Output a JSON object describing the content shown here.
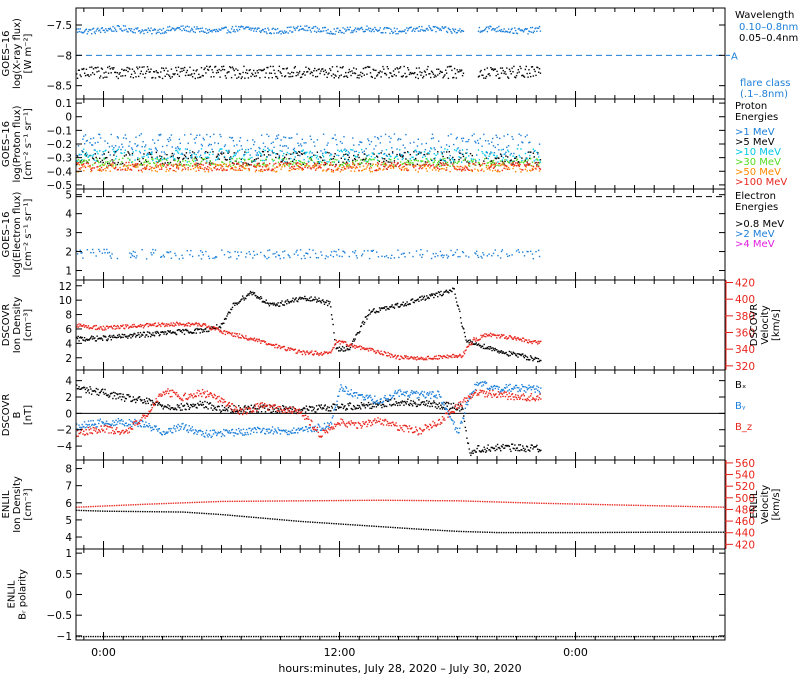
{
  "x_axis_label": "hours:minutes, July 28, 2020 – July 30, 2020",
  "x_ticks": [
    {
      "label": "0:00",
      "hour": 0
    },
    {
      "label": "12:00",
      "hour": 12
    },
    {
      "label": "0:00",
      "hour": 24
    }
  ],
  "colors": {
    "black": "#000000",
    "blue": "#1c7fd8",
    "cyan": "#00c8e6",
    "green": "#55dd22",
    "orange": "#ff8800",
    "red": "#e8261e",
    "magenta": "#e020e0"
  },
  "chart_data": [
    {
      "type": "scatter",
      "ylabel": [
        "GOES–16",
        "log(X-ray flux)",
        "[W m⁻²]"
      ],
      "yticks": [
        -8.5,
        -8.0,
        -7.5
      ],
      "ylim": [
        -8.72,
        -7.22
      ],
      "xlim": [
        -1.4,
        31.6
      ],
      "threshold": {
        "value": -8.0,
        "label": "A"
      },
      "legend_title": "Wavelength",
      "series": [
        {
          "name": "0.10–0.8nm",
          "color": "#1c7fd8",
          "level": -7.57,
          "noise": 0.05
        },
        {
          "name": "0.05–0.4nm",
          "color": "#000000",
          "level": -8.27,
          "noise": 0.1
        }
      ],
      "gap": [
        18.3,
        19.0
      ],
      "data_end": 22.2,
      "extra_text": [
        "flare class",
        "(.1–.8nm)"
      ]
    },
    {
      "type": "scatter",
      "ylabel": [
        "GOES–16",
        "log(Proton flux)",
        "[cm⁻² s⁻¹ sr⁻¹]"
      ],
      "yticks": [
        -0.5,
        -0.4,
        -0.3,
        -0.2,
        -0.1,
        0.0,
        0.1
      ],
      "ylim": [
        -0.53,
        0.13
      ],
      "xlim": [
        -1.4,
        31.6
      ],
      "legend_title": [
        "Proton",
        "Energies"
      ],
      "series": [
        {
          "name": ">1 MeV",
          "color": "#1c7fd8",
          "level": -0.2,
          "noise": 0.08
        },
        {
          "name": ">5 MeV",
          "color": "#000000",
          "level": -0.3,
          "noise": 0.05
        },
        {
          "name": ">10 MeV",
          "color": "#00c8e6",
          "level": -0.28,
          "noise": 0.05
        },
        {
          "name": ">30 MeV",
          "color": "#55dd22",
          "level": -0.33,
          "noise": 0.03
        },
        {
          "name": ">50 MeV",
          "color": "#ff8800",
          "level": -0.37,
          "noise": 0.03
        },
        {
          "name": ">100 MeV",
          "color": "#e8261e",
          "level": -0.36,
          "noise": 0.03
        }
      ],
      "data_end": 22.2
    },
    {
      "type": "scatter",
      "ylabel": [
        "GOES–16",
        "log(Electron flux)",
        "[cm⁻² s⁻¹ sr⁻¹]"
      ],
      "yticks": [
        1,
        2,
        3,
        4,
        5
      ],
      "ylim": [
        0.5,
        5.3
      ],
      "xlim": [
        -1.4,
        31.6
      ],
      "threshold": {
        "value": 4.9
      },
      "legend_title": [
        "Electron",
        "Energies"
      ],
      "series": [
        {
          "name": ">0.8 MeV",
          "color": "#000000",
          "level": null
        },
        {
          "name": ">2 MeV",
          "color": "#1c7fd8",
          "level": 1.9,
          "noise": 0.25
        },
        {
          "name": ">4 MeV",
          "color": "#e020e0",
          "level": null
        }
      ],
      "data_end": 22.2
    },
    {
      "type": "line",
      "ylabel": [
        "DSCOVR",
        "Ion Density",
        "[cm⁻³]"
      ],
      "yticks": [
        2,
        4,
        6,
        8,
        10,
        12
      ],
      "ylim": [
        0.3,
        12.8
      ],
      "xlim": [
        -1.4,
        31.6
      ],
      "ylabel_right": [
        "DSCOVR",
        "Velocity",
        "[km/s]"
      ],
      "yticks_right": [
        320,
        340,
        360,
        380,
        400,
        420
      ],
      "ylim_right": [
        315,
        423
      ],
      "series": [
        {
          "name": "Ion Density",
          "color": "#000000",
          "axis": "left",
          "x": [
            -1.4,
            0,
            2,
            4,
            5,
            6,
            6.6,
            7.5,
            8.5,
            10,
            11,
            11.5,
            11.8,
            12.5,
            13.5,
            14.5,
            16,
            17,
            17.8,
            18.4,
            19.3,
            20.5,
            22.2
          ],
          "y": [
            4.7,
            4.8,
            5.3,
            5.7,
            5.9,
            6.5,
            9.5,
            11.2,
            9.3,
            10.3,
            10.1,
            9.5,
            3.2,
            3.5,
            8.5,
            9.0,
            10.2,
            10.9,
            11.6,
            4.4,
            3.7,
            2.7,
            1.8
          ]
        },
        {
          "name": "Velocity",
          "color": "#e8261e",
          "axis": "right",
          "x": [
            -1.4,
            0,
            2,
            4,
            5,
            6,
            7.5,
            8.5,
            10,
            11.5,
            11.8,
            13,
            14,
            15,
            16.5,
            18.2,
            18.8,
            19.5,
            20.5,
            22.2
          ],
          "y": [
            369,
            366,
            369,
            371,
            370,
            362,
            353,
            346,
            337,
            335,
            350,
            343,
            337,
            331,
            330,
            333,
            352,
            358,
            355,
            348
          ]
        }
      ]
    },
    {
      "type": "line",
      "ylabel": [
        "DSCOVR",
        "B",
        "[nT]"
      ],
      "yticks": [
        -4,
        -2,
        0,
        2,
        4
      ],
      "ylim": [
        -5.7,
        5.3
      ],
      "xlim": [
        -1.4,
        31.6
      ],
      "zero_line": true,
      "series": [
        {
          "name": "Bₓ",
          "color": "#000000",
          "x": [
            -1.4,
            0,
            1,
            2,
            3,
            4,
            5,
            6,
            8,
            10,
            12,
            13,
            14,
            15,
            16,
            17,
            18.2,
            18.6,
            19,
            20,
            22.2
          ],
          "y": [
            3.2,
            2.6,
            2.0,
            1.6,
            1.0,
            0.8,
            1.2,
            0.6,
            0.7,
            0.5,
            0.9,
            1.0,
            1.2,
            1.5,
            1.3,
            1.1,
            0.8,
            -4.8,
            -4.3,
            -4.1,
            -4.2
          ]
        },
        {
          "name": "Bᵧ",
          "color": "#1c7fd8",
          "x": [
            -1.4,
            0,
            1,
            2,
            3,
            4,
            5,
            6,
            7,
            8,
            10,
            11.5,
            12,
            13,
            14,
            15,
            16,
            17,
            18,
            18.6,
            19,
            20,
            21,
            22.2
          ],
          "y": [
            -1.5,
            -1.0,
            -1.0,
            -1.2,
            -2.2,
            -1.5,
            -2.5,
            -2.3,
            -2.2,
            -2.0,
            -2.1,
            -1.4,
            3.2,
            2.2,
            1.6,
            2.6,
            2.3,
            2.4,
            -2.3,
            2.3,
            3.8,
            3.1,
            3.2,
            3.0
          ]
        },
        {
          "name": "B_z",
          "color": "#e8261e",
          "x": [
            -1.4,
            0,
            1,
            2,
            3,
            4,
            5,
            6,
            7,
            8,
            10,
            11,
            12,
            13,
            14,
            15,
            16,
            17,
            18,
            18.6,
            19,
            20,
            21,
            22.2
          ],
          "y": [
            -2.3,
            -1.8,
            -2.3,
            -0.5,
            2.8,
            2.1,
            2.6,
            1.6,
            0.2,
            1.0,
            0.2,
            -2.5,
            -1.0,
            -1.5,
            -0.8,
            -1.6,
            -2.1,
            -1.0,
            1.0,
            2.0,
            2.6,
            2.4,
            2.0,
            2.1
          ]
        }
      ]
    },
    {
      "type": "line",
      "ylabel": [
        "ENLIL",
        "Ion Density",
        "[cm⁻³]"
      ],
      "yticks": [
        4,
        5,
        6,
        7,
        8
      ],
      "ylim": [
        3.3,
        8.5
      ],
      "xlim": [
        -1.4,
        31.6
      ],
      "ylabel_right": [
        "ENLIL",
        "Velocity",
        "[km/s]"
      ],
      "yticks_right": [
        420,
        440,
        460,
        480,
        500,
        520,
        540,
        560
      ],
      "ylim_right": [
        412,
        565
      ],
      "series": [
        {
          "name": "Ion Density",
          "color": "#000000",
          "axis": "left",
          "x": [
            -1.4,
            0,
            4,
            6,
            8,
            10,
            12,
            14,
            16,
            18,
            20,
            22,
            24,
            28,
            31.6
          ],
          "y": [
            5.6,
            5.55,
            5.5,
            5.35,
            5.15,
            4.95,
            4.8,
            4.65,
            4.5,
            4.37,
            4.3,
            4.3,
            4.3,
            4.32,
            4.32
          ]
        },
        {
          "name": "Velocity",
          "color": "#e8261e",
          "axis": "right",
          "x": [
            -1.4,
            2,
            6,
            10,
            14,
            18,
            22,
            26,
            31.6
          ],
          "y": [
            485,
            490,
            495,
            496,
            497,
            496,
            492,
            489,
            485
          ]
        }
      ]
    },
    {
      "type": "line",
      "ylabel": [
        "ENLIL",
        "Bᵣ polarity"
      ],
      "yticks": [
        -1.0,
        -0.5,
        0.0,
        0.5,
        1.0
      ],
      "ylim": [
        -1.1,
        1.1
      ],
      "xlim": [
        -1.4,
        31.6
      ],
      "series": [
        {
          "name": "Bᵣ polarity",
          "color": "#000000",
          "x": [
            -1.4,
            31.6
          ],
          "y": [
            -1,
            -1
          ]
        }
      ]
    }
  ]
}
